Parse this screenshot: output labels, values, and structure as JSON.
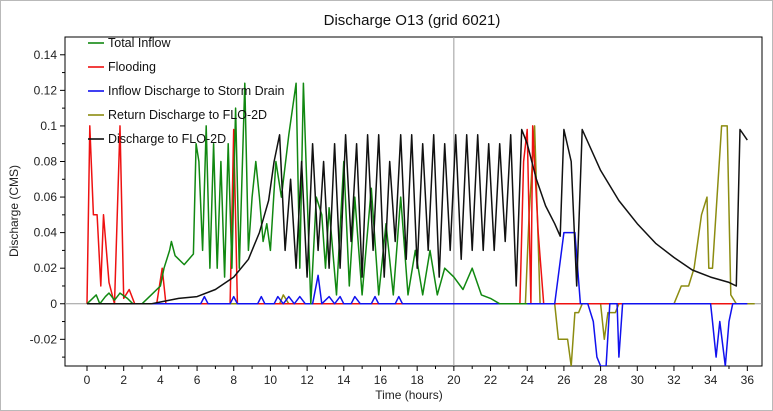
{
  "chart_data": {
    "type": "line",
    "title": "Discharge O13 (grid 6021)",
    "xlabel": "Time (hours)",
    "ylabel": "Discharge (CMS)",
    "xlim": [
      -1.2,
      36.8
    ],
    "ylim": [
      -0.035,
      0.15
    ],
    "xticks": [
      0,
      2,
      4,
      6,
      8,
      10,
      12,
      14,
      16,
      18,
      20,
      22,
      24,
      26,
      28,
      30,
      32,
      34,
      36
    ],
    "yticks": [
      -0.02,
      0,
      0.02,
      0.04,
      0.06,
      0.08,
      0.1,
      0.12,
      0.14
    ],
    "ytick_labels": [
      "-0.02",
      "0",
      "0.02",
      "0.04",
      "0.06",
      "0.08",
      "0.1",
      "0.12",
      "0.14"
    ],
    "grid": "crosshair at x=20, y=0",
    "legend_position": "top-left",
    "series": [
      {
        "name": "Total Inflow",
        "color": "#118811",
        "points": [
          [
            0,
            0
          ],
          [
            0.5,
            0.005
          ],
          [
            0.7,
            0
          ],
          [
            1,
            0.004
          ],
          [
            1.2,
            0.006
          ],
          [
            1.5,
            0.002
          ],
          [
            1.8,
            0.006
          ],
          [
            2.2,
            0.003
          ],
          [
            2.5,
            0
          ],
          [
            3,
            0
          ],
          [
            3.5,
            0.005
          ],
          [
            4,
            0.01
          ],
          [
            4.2,
            0.02
          ],
          [
            4.5,
            0.03
          ],
          [
            4.6,
            0.035
          ],
          [
            4.8,
            0.027
          ],
          [
            5.3,
            0.022
          ],
          [
            5.8,
            0.028
          ],
          [
            5.95,
            0.09
          ],
          [
            6.1,
            0.08
          ],
          [
            6.3,
            0.03
          ],
          [
            6.5,
            0.1
          ],
          [
            6.7,
            0.02
          ],
          [
            6.9,
            0.09
          ],
          [
            7.1,
            0.02
          ],
          [
            7.3,
            0.08
          ],
          [
            7.5,
            0.015
          ],
          [
            7.7,
            0.09
          ],
          [
            7.9,
            0.02
          ],
          [
            8.1,
            0.11
          ],
          [
            8.3,
            0.02
          ],
          [
            8.6,
            0.124
          ],
          [
            8.8,
            0.03
          ],
          [
            9,
            0.06
          ],
          [
            9.2,
            0.08
          ],
          [
            9.4,
            0.06
          ],
          [
            9.6,
            0.035
          ],
          [
            9.8,
            0.045
          ],
          [
            10,
            0.03
          ],
          [
            10.3,
            0.08
          ],
          [
            10.6,
            0.06
          ],
          [
            11,
            0.095
          ],
          [
            11.4,
            0.124
          ],
          [
            11.6,
            0.02
          ],
          [
            11.8,
            0.124
          ],
          [
            12.2,
            0
          ],
          [
            12.5,
            0.06
          ],
          [
            12.8,
            0.05
          ],
          [
            13,
            0.02
          ],
          [
            13.2,
            0.054
          ],
          [
            13.6,
            0.005
          ],
          [
            14,
            0.08
          ],
          [
            14.3,
            0.01
          ],
          [
            14.6,
            0.06
          ],
          [
            15,
            0.005
          ],
          [
            15.5,
            0.065
          ],
          [
            15.9,
            0.005
          ],
          [
            16.3,
            0.045
          ],
          [
            16.7,
            0.005
          ],
          [
            17.1,
            0.06
          ],
          [
            17.5,
            0.005
          ],
          [
            17.9,
            0.03
          ],
          [
            18.3,
            0.005
          ],
          [
            18.7,
            0.03
          ],
          [
            19.1,
            0.005
          ],
          [
            19.5,
            0.02
          ],
          [
            20,
            0.015
          ],
          [
            20.5,
            0.008
          ],
          [
            21,
            0.02
          ],
          [
            21.5,
            0.005
          ],
          [
            22,
            0.003
          ],
          [
            22.5,
            0
          ],
          [
            23,
            0
          ],
          [
            24,
            0
          ]
        ]
      },
      {
        "name": "Flooding",
        "color": "#ee1111",
        "points": [
          [
            0,
            0
          ],
          [
            0.15,
            0.1
          ],
          [
            0.35,
            0.05
          ],
          [
            0.55,
            0.05
          ],
          [
            0.75,
            0.01
          ],
          [
            0.9,
            0.05
          ],
          [
            1.2,
            0.012
          ],
          [
            1.5,
            0
          ],
          [
            1.8,
            0.1
          ],
          [
            2,
            0.003
          ],
          [
            2.3,
            0.008
          ],
          [
            2.6,
            0
          ],
          [
            3.8,
            0
          ],
          [
            4.1,
            0.02
          ],
          [
            4.3,
            0
          ],
          [
            7.8,
            0
          ],
          [
            8,
            0.098
          ],
          [
            8.2,
            0
          ],
          [
            23.6,
            0
          ],
          [
            23.8,
            0.08
          ],
          [
            24,
            0.098
          ],
          [
            24.2,
            0
          ],
          [
            24.3,
            0.1
          ],
          [
            24.6,
            0.04
          ],
          [
            24.9,
            0
          ],
          [
            36,
            0
          ]
        ]
      },
      {
        "name": "Inflow Discharge to Storm Drain",
        "color": "#1111ee",
        "points": [
          [
            0,
            0
          ],
          [
            6.2,
            0
          ],
          [
            6.4,
            0.004
          ],
          [
            6.6,
            0
          ],
          [
            7.8,
            0
          ],
          [
            8,
            0.004
          ],
          [
            8.2,
            0
          ],
          [
            9.3,
            0
          ],
          [
            9.5,
            0.004
          ],
          [
            9.7,
            0
          ],
          [
            10.2,
            0
          ],
          [
            10.4,
            0.004
          ],
          [
            10.7,
            0
          ],
          [
            11,
            0.004
          ],
          [
            11.3,
            0
          ],
          [
            11.6,
            0.004
          ],
          [
            11.9,
            0
          ],
          [
            12.3,
            0
          ],
          [
            12.6,
            0.016
          ],
          [
            12.8,
            0
          ],
          [
            13.2,
            0.004
          ],
          [
            13.5,
            0
          ],
          [
            13.8,
            0.004
          ],
          [
            14,
            0
          ],
          [
            14.4,
            0
          ],
          [
            14.6,
            0.004
          ],
          [
            14.9,
            0
          ],
          [
            15.5,
            0
          ],
          [
            15.7,
            0.004
          ],
          [
            15.9,
            0
          ],
          [
            16.8,
            0
          ],
          [
            17,
            0.004
          ],
          [
            17.2,
            0
          ],
          [
            23,
            0
          ],
          [
            25.5,
            0
          ],
          [
            26,
            0.04
          ],
          [
            26.6,
            0.04
          ],
          [
            26.9,
            0
          ],
          [
            27.3,
            0
          ],
          [
            27.6,
            -0.01
          ],
          [
            27.8,
            -0.03
          ],
          [
            28,
            -0.035
          ],
          [
            28.3,
            -0.035
          ],
          [
            28.5,
            0
          ],
          [
            28.9,
            0
          ],
          [
            29,
            -0.03
          ],
          [
            29.2,
            0
          ],
          [
            33,
            0
          ],
          [
            34,
            0
          ],
          [
            34.1,
            -0.01
          ],
          [
            34.3,
            -0.03
          ],
          [
            34.5,
            -0.01
          ],
          [
            34.8,
            -0.035
          ],
          [
            35,
            -0.01
          ],
          [
            35.2,
            0
          ],
          [
            36,
            0
          ]
        ]
      },
      {
        "name": "Return Discharge to FLO-2D",
        "color": "#8c8c10",
        "points": [
          [
            0,
            0
          ],
          [
            10.5,
            0
          ],
          [
            10.7,
            0.005
          ],
          [
            11,
            0
          ],
          [
            20,
            0
          ],
          [
            23.5,
            0
          ],
          [
            23.9,
            0
          ],
          [
            24.1,
            0.05
          ],
          [
            24.4,
            0.1
          ],
          [
            24.7,
            0
          ],
          [
            25.5,
            0
          ],
          [
            25.7,
            -0.02
          ],
          [
            26.2,
            -0.02
          ],
          [
            26.4,
            -0.035
          ],
          [
            26.6,
            -0.005
          ],
          [
            26.8,
            -0.005
          ],
          [
            27,
            0
          ],
          [
            28,
            0
          ],
          [
            28.2,
            -0.02
          ],
          [
            28.4,
            -0.005
          ],
          [
            28.8,
            -0.005
          ],
          [
            29,
            0
          ],
          [
            32,
            0
          ],
          [
            32.4,
            0.01
          ],
          [
            32.8,
            0.01
          ],
          [
            33.1,
            0.02
          ],
          [
            33.5,
            0.05
          ],
          [
            33.8,
            0.06
          ],
          [
            33.9,
            0.02
          ],
          [
            34.1,
            0.02
          ],
          [
            34.6,
            0.1
          ],
          [
            34.9,
            0.1
          ],
          [
            35.1,
            0.005
          ],
          [
            35.4,
            0
          ],
          [
            36.4,
            0
          ]
        ]
      },
      {
        "name": "Discharge to FLO-2D",
        "color": "#111111",
        "points": [
          [
            0,
            0
          ],
          [
            3.5,
            0
          ],
          [
            4,
            0.001
          ],
          [
            5,
            0.003
          ],
          [
            6,
            0.004
          ],
          [
            7,
            0.008
          ],
          [
            8,
            0.015
          ],
          [
            8.8,
            0.025
          ],
          [
            9.4,
            0.04
          ],
          [
            9.9,
            0.058
          ],
          [
            10.2,
            0.08
          ],
          [
            10.5,
            0.095
          ],
          [
            10.8,
            0.03
          ],
          [
            11.1,
            0.07
          ],
          [
            11.4,
            0.02
          ],
          [
            11.7,
            0.08
          ],
          [
            12,
            0.015
          ],
          [
            12.3,
            0.09
          ],
          [
            12.6,
            0.03
          ],
          [
            12.9,
            0.08
          ],
          [
            13.2,
            0.02
          ],
          [
            13.5,
            0.09
          ],
          [
            13.8,
            0.02
          ],
          [
            14.1,
            0.095
          ],
          [
            14.4,
            0.035
          ],
          [
            14.7,
            0.09
          ],
          [
            15,
            0.015
          ],
          [
            15.3,
            0.095
          ],
          [
            15.6,
            0.03
          ],
          [
            15.9,
            0.095
          ],
          [
            16.2,
            0.015
          ],
          [
            16.5,
            0.08
          ],
          [
            16.8,
            0.035
          ],
          [
            17.1,
            0.095
          ],
          [
            17.4,
            0.025
          ],
          [
            17.7,
            0.095
          ],
          [
            18,
            0.02
          ],
          [
            18.3,
            0.09
          ],
          [
            18.6,
            0.03
          ],
          [
            18.9,
            0.095
          ],
          [
            19.2,
            0.015
          ],
          [
            19.5,
            0.09
          ],
          [
            19.8,
            0.03
          ],
          [
            20.1,
            0.095
          ],
          [
            20.4,
            0.025
          ],
          [
            20.7,
            0.095
          ],
          [
            21,
            0.03
          ],
          [
            21.3,
            0.095
          ],
          [
            21.6,
            0.03
          ],
          [
            21.9,
            0.09
          ],
          [
            22.2,
            0.03
          ],
          [
            22.5,
            0.09
          ],
          [
            22.8,
            0.035
          ],
          [
            23.1,
            0.095
          ],
          [
            23.4,
            0.01
          ],
          [
            23.7,
            0.098
          ],
          [
            24,
            0.09
          ],
          [
            24.5,
            0.07
          ],
          [
            25,
            0.055
          ],
          [
            25.5,
            0.045
          ],
          [
            25.8,
            0.038
          ],
          [
            26,
            0.098
          ],
          [
            26.4,
            0.08
          ],
          [
            26.7,
            0.01
          ],
          [
            27,
            0.098
          ],
          [
            28,
            0.075
          ],
          [
            29,
            0.058
          ],
          [
            30,
            0.045
          ],
          [
            31,
            0.034
          ],
          [
            32,
            0.026
          ],
          [
            33,
            0.019
          ],
          [
            34,
            0.015
          ],
          [
            35,
            0.012
          ],
          [
            35.4,
            0.01
          ],
          [
            35.6,
            0.098
          ],
          [
            36,
            0.092
          ]
        ]
      }
    ]
  }
}
